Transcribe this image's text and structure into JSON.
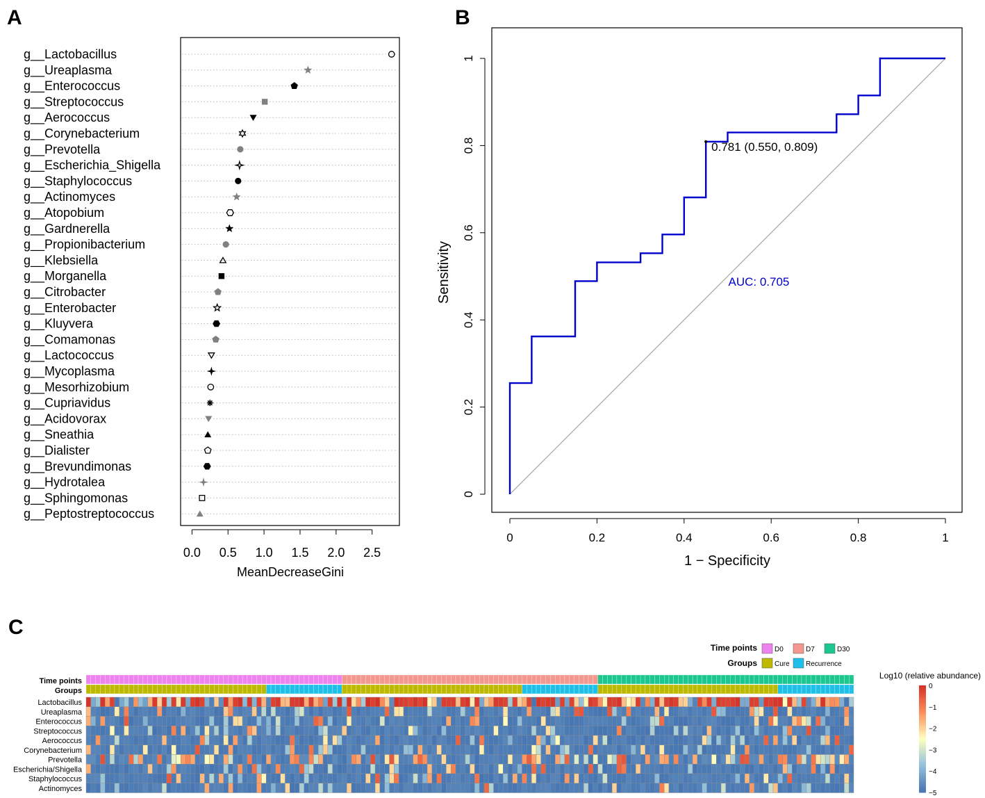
{
  "panels": {
    "a": "A",
    "b": "B",
    "c": "C"
  },
  "chart_data": [
    {
      "type": "scatter",
      "title": "",
      "xlabel": "MeanDecreaseGini",
      "ylabel": "",
      "xlim": [
        -0.1,
        2.85
      ],
      "xticks": [
        "0.0",
        "0.5",
        "1.0",
        "1.5",
        "2.0",
        "2.5"
      ],
      "grid": "horizontal dotted",
      "points": [
        {
          "label": "g__Lactobacillus",
          "value": 2.77,
          "marker": "circle-open",
          "color": "#000000"
        },
        {
          "label": "g__Ureaplasma",
          "value": 1.61,
          "marker": "star",
          "color": "#808080"
        },
        {
          "label": "g__Enterococcus",
          "value": 1.42,
          "marker": "pentagon",
          "color": "#000000"
        },
        {
          "label": "g__Streptococcus",
          "value": 1.01,
          "marker": "square",
          "color": "#808080"
        },
        {
          "label": "g__Aerococcus",
          "value": 0.85,
          "marker": "triangle-down",
          "color": "#000000"
        },
        {
          "label": "g__Corynebacterium",
          "value": 0.7,
          "marker": "star6-open",
          "color": "#000000"
        },
        {
          "label": "g__Prevotella",
          "value": 0.67,
          "marker": "circle",
          "color": "#808080"
        },
        {
          "label": "g__Escherichia_Shigella",
          "value": 0.66,
          "marker": "star4-open",
          "color": "#000000"
        },
        {
          "label": "g__Staphylococcus",
          "value": 0.64,
          "marker": "circle",
          "color": "#000000"
        },
        {
          "label": "g__Actinomyces",
          "value": 0.62,
          "marker": "star",
          "color": "#808080"
        },
        {
          "label": "g__Atopobium",
          "value": 0.53,
          "marker": "hexagon-open",
          "color": "#000000"
        },
        {
          "label": "g__Gardnerella",
          "value": 0.52,
          "marker": "star",
          "color": "#000000"
        },
        {
          "label": "g__Propionibacterium",
          "value": 0.47,
          "marker": "circle",
          "color": "#808080"
        },
        {
          "label": "g__Klebsiella",
          "value": 0.43,
          "marker": "triangle-open",
          "color": "#000000"
        },
        {
          "label": "g__Morganella",
          "value": 0.41,
          "marker": "square",
          "color": "#000000"
        },
        {
          "label": "g__Citrobacter",
          "value": 0.36,
          "marker": "pentagon",
          "color": "#808080"
        },
        {
          "label": "g__Enterobacter",
          "value": 0.35,
          "marker": "star-open",
          "color": "#000000"
        },
        {
          "label": "g__Kluyvera",
          "value": 0.34,
          "marker": "hexagon",
          "color": "#000000"
        },
        {
          "label": "g__Comamonas",
          "value": 0.33,
          "marker": "pentagon",
          "color": "#808080"
        },
        {
          "label": "g__Lactococcus",
          "value": 0.27,
          "marker": "triangle-down-open",
          "color": "#000000"
        },
        {
          "label": "g__Mycoplasma",
          "value": 0.27,
          "marker": "star4",
          "color": "#000000"
        },
        {
          "label": "g__Mesorhizobium",
          "value": 0.26,
          "marker": "circle-open",
          "color": "#000000"
        },
        {
          "label": "g__Cupriavidus",
          "value": 0.25,
          "marker": "asterisk",
          "color": "#000000"
        },
        {
          "label": "g__Acidovorax",
          "value": 0.23,
          "marker": "triangle-down",
          "color": "#808080"
        },
        {
          "label": "g__Sneathia",
          "value": 0.22,
          "marker": "triangle",
          "color": "#000000"
        },
        {
          "label": "g__Dialister",
          "value": 0.22,
          "marker": "pentagon-open",
          "color": "#000000"
        },
        {
          "label": "g__Brevundimonas",
          "value": 0.21,
          "marker": "hexagon",
          "color": "#000000"
        },
        {
          "label": "g__Hydrotalea",
          "value": 0.16,
          "marker": "star4",
          "color": "#808080"
        },
        {
          "label": "g__Sphingomonas",
          "value": 0.14,
          "marker": "square-open",
          "color": "#000000"
        },
        {
          "label": "g__Peptostreptococcus",
          "value": 0.11,
          "marker": "triangle",
          "color": "#808080"
        }
      ]
    },
    {
      "type": "line",
      "title": "",
      "xlabel": "1 − Specificity",
      "ylabel": "Sensitivity",
      "xlim": [
        0,
        1
      ],
      "ylim": [
        0,
        1
      ],
      "xticks": [
        "0",
        "0.2",
        "0.4",
        "0.6",
        "0.8",
        "1"
      ],
      "yticks": [
        "0",
        "0.2",
        "0.4",
        "0.6",
        "0.8",
        "1"
      ],
      "series": [
        {
          "name": "ROC",
          "color": "#0000cc",
          "x": [
            0,
            0,
            0.05,
            0.05,
            0.15,
            0.15,
            0.2,
            0.2,
            0.3,
            0.3,
            0.35,
            0.35,
            0.4,
            0.4,
            0.45,
            0.45,
            0.5,
            0.5,
            0.75,
            0.75,
            0.8,
            0.8,
            0.85,
            0.85,
            1.0
          ],
          "y": [
            0,
            0.255,
            0.255,
            0.362,
            0.362,
            0.489,
            0.489,
            0.532,
            0.532,
            0.553,
            0.553,
            0.596,
            0.596,
            0.681,
            0.681,
            0.809,
            0.809,
            0.83,
            0.83,
            0.872,
            0.872,
            0.915,
            0.915,
            1.0,
            1.0
          ]
        },
        {
          "name": "reference",
          "color": "#999999",
          "x": [
            0,
            1
          ],
          "y": [
            0,
            1
          ]
        }
      ],
      "annotations": [
        {
          "text": "0.781 (0.550, 0.809)",
          "x": 0.45,
          "y": 0.809
        },
        {
          "text": "AUC: 0.705",
          "x": 0.5,
          "y": 0.48,
          "color": "#0000cc"
        }
      ]
    },
    {
      "type": "heatmap",
      "title": "",
      "rows": [
        "Lactobacillus",
        "Ureaplasma",
        "Enterococcus",
        "Streptococcus",
        "Aerococcus",
        "Corynebacterium",
        "Prevotella",
        "Escherichia/Shigella",
        "Staphylococcus",
        "Actinomyces"
      ],
      "columns_count": 162,
      "annotation_rows": [
        "Time points",
        "Groups"
      ],
      "time_points": [
        {
          "label": "D0",
          "color": "#ee82ee",
          "count": 54
        },
        {
          "label": "D7",
          "color": "#f4978e",
          "count": 54
        },
        {
          "label": "D30",
          "color": "#1cc78f",
          "count": 54
        }
      ],
      "groups_per_timepoint": [
        {
          "label": "Cure",
          "color": "#bdb800",
          "count": 38
        },
        {
          "label": "Recurrence",
          "color": "#1ebfe8",
          "count": 16
        }
      ],
      "legend": {
        "time_points_title": "Time points",
        "groups_title": "Groups",
        "colorbar_title": "Log10 (relative abundance)",
        "colorbar_ticks": [
          "0",
          "−1",
          "−2",
          "−3",
          "−4",
          "−5"
        ],
        "range": [
          -5,
          0
        ],
        "colors": [
          "#4575b4",
          "#91bfdb",
          "#ffffbf",
          "#fc8d59",
          "#d73027"
        ]
      },
      "row_profiles": [
        {
          "row": "Lactobacillus",
          "mean": -1.5,
          "spread": 1.6
        },
        {
          "row": "Ureaplasma",
          "mean": -4.5,
          "spread": 0.8
        },
        {
          "row": "Enterococcus",
          "mean": -4.2,
          "spread": 1.2
        },
        {
          "row": "Streptococcus",
          "mean": -4.3,
          "spread": 1.0
        },
        {
          "row": "Aerococcus",
          "mean": -4.4,
          "spread": 1.0
        },
        {
          "row": "Corynebacterium",
          "mean": -4.1,
          "spread": 1.3
        },
        {
          "row": "Prevotella",
          "mean": -2.7,
          "spread": 1.8
        },
        {
          "row": "Escherichia/Shigella",
          "mean": -4.5,
          "spread": 0.9
        },
        {
          "row": "Staphylococcus",
          "mean": -4.2,
          "spread": 1.2
        },
        {
          "row": "Actinomyces",
          "mean": -4.5,
          "spread": 0.8
        }
      ]
    }
  ]
}
